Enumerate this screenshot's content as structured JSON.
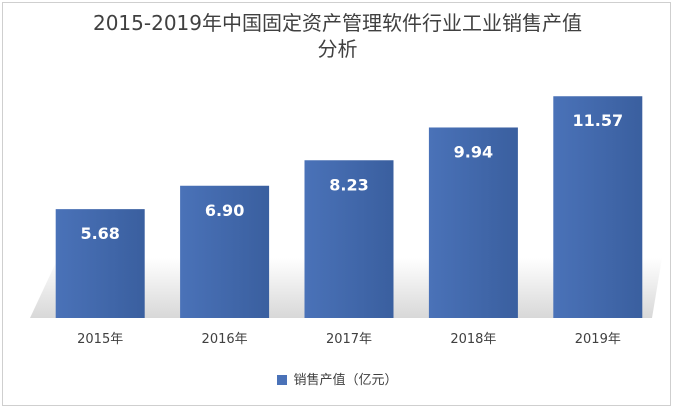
{
  "chart_data": {
    "type": "bar",
    "title_line1": "2015-2019年中国固定资产管理软件行业工业销售产值",
    "title_line2": "分析",
    "categories": [
      "2015年",
      "2016年",
      "2017年",
      "2018年",
      "2019年"
    ],
    "series": [
      {
        "name": "销售产值（亿元）",
        "values": [
          5.68,
          6.9,
          8.23,
          9.94,
          11.57
        ],
        "labels": [
          "5.68",
          "6.90",
          "8.23",
          "9.94",
          "11.57"
        ]
      }
    ],
    "ylim": [
      0,
      13.2
    ],
    "grid": false,
    "legend_position": "bottom",
    "colors": {
      "bar": "#4a72b8",
      "bar_dark": "#3a5f9f",
      "bar_label": "#ffffff",
      "text": "#404040",
      "shadow": "#d8d8d8"
    }
  }
}
